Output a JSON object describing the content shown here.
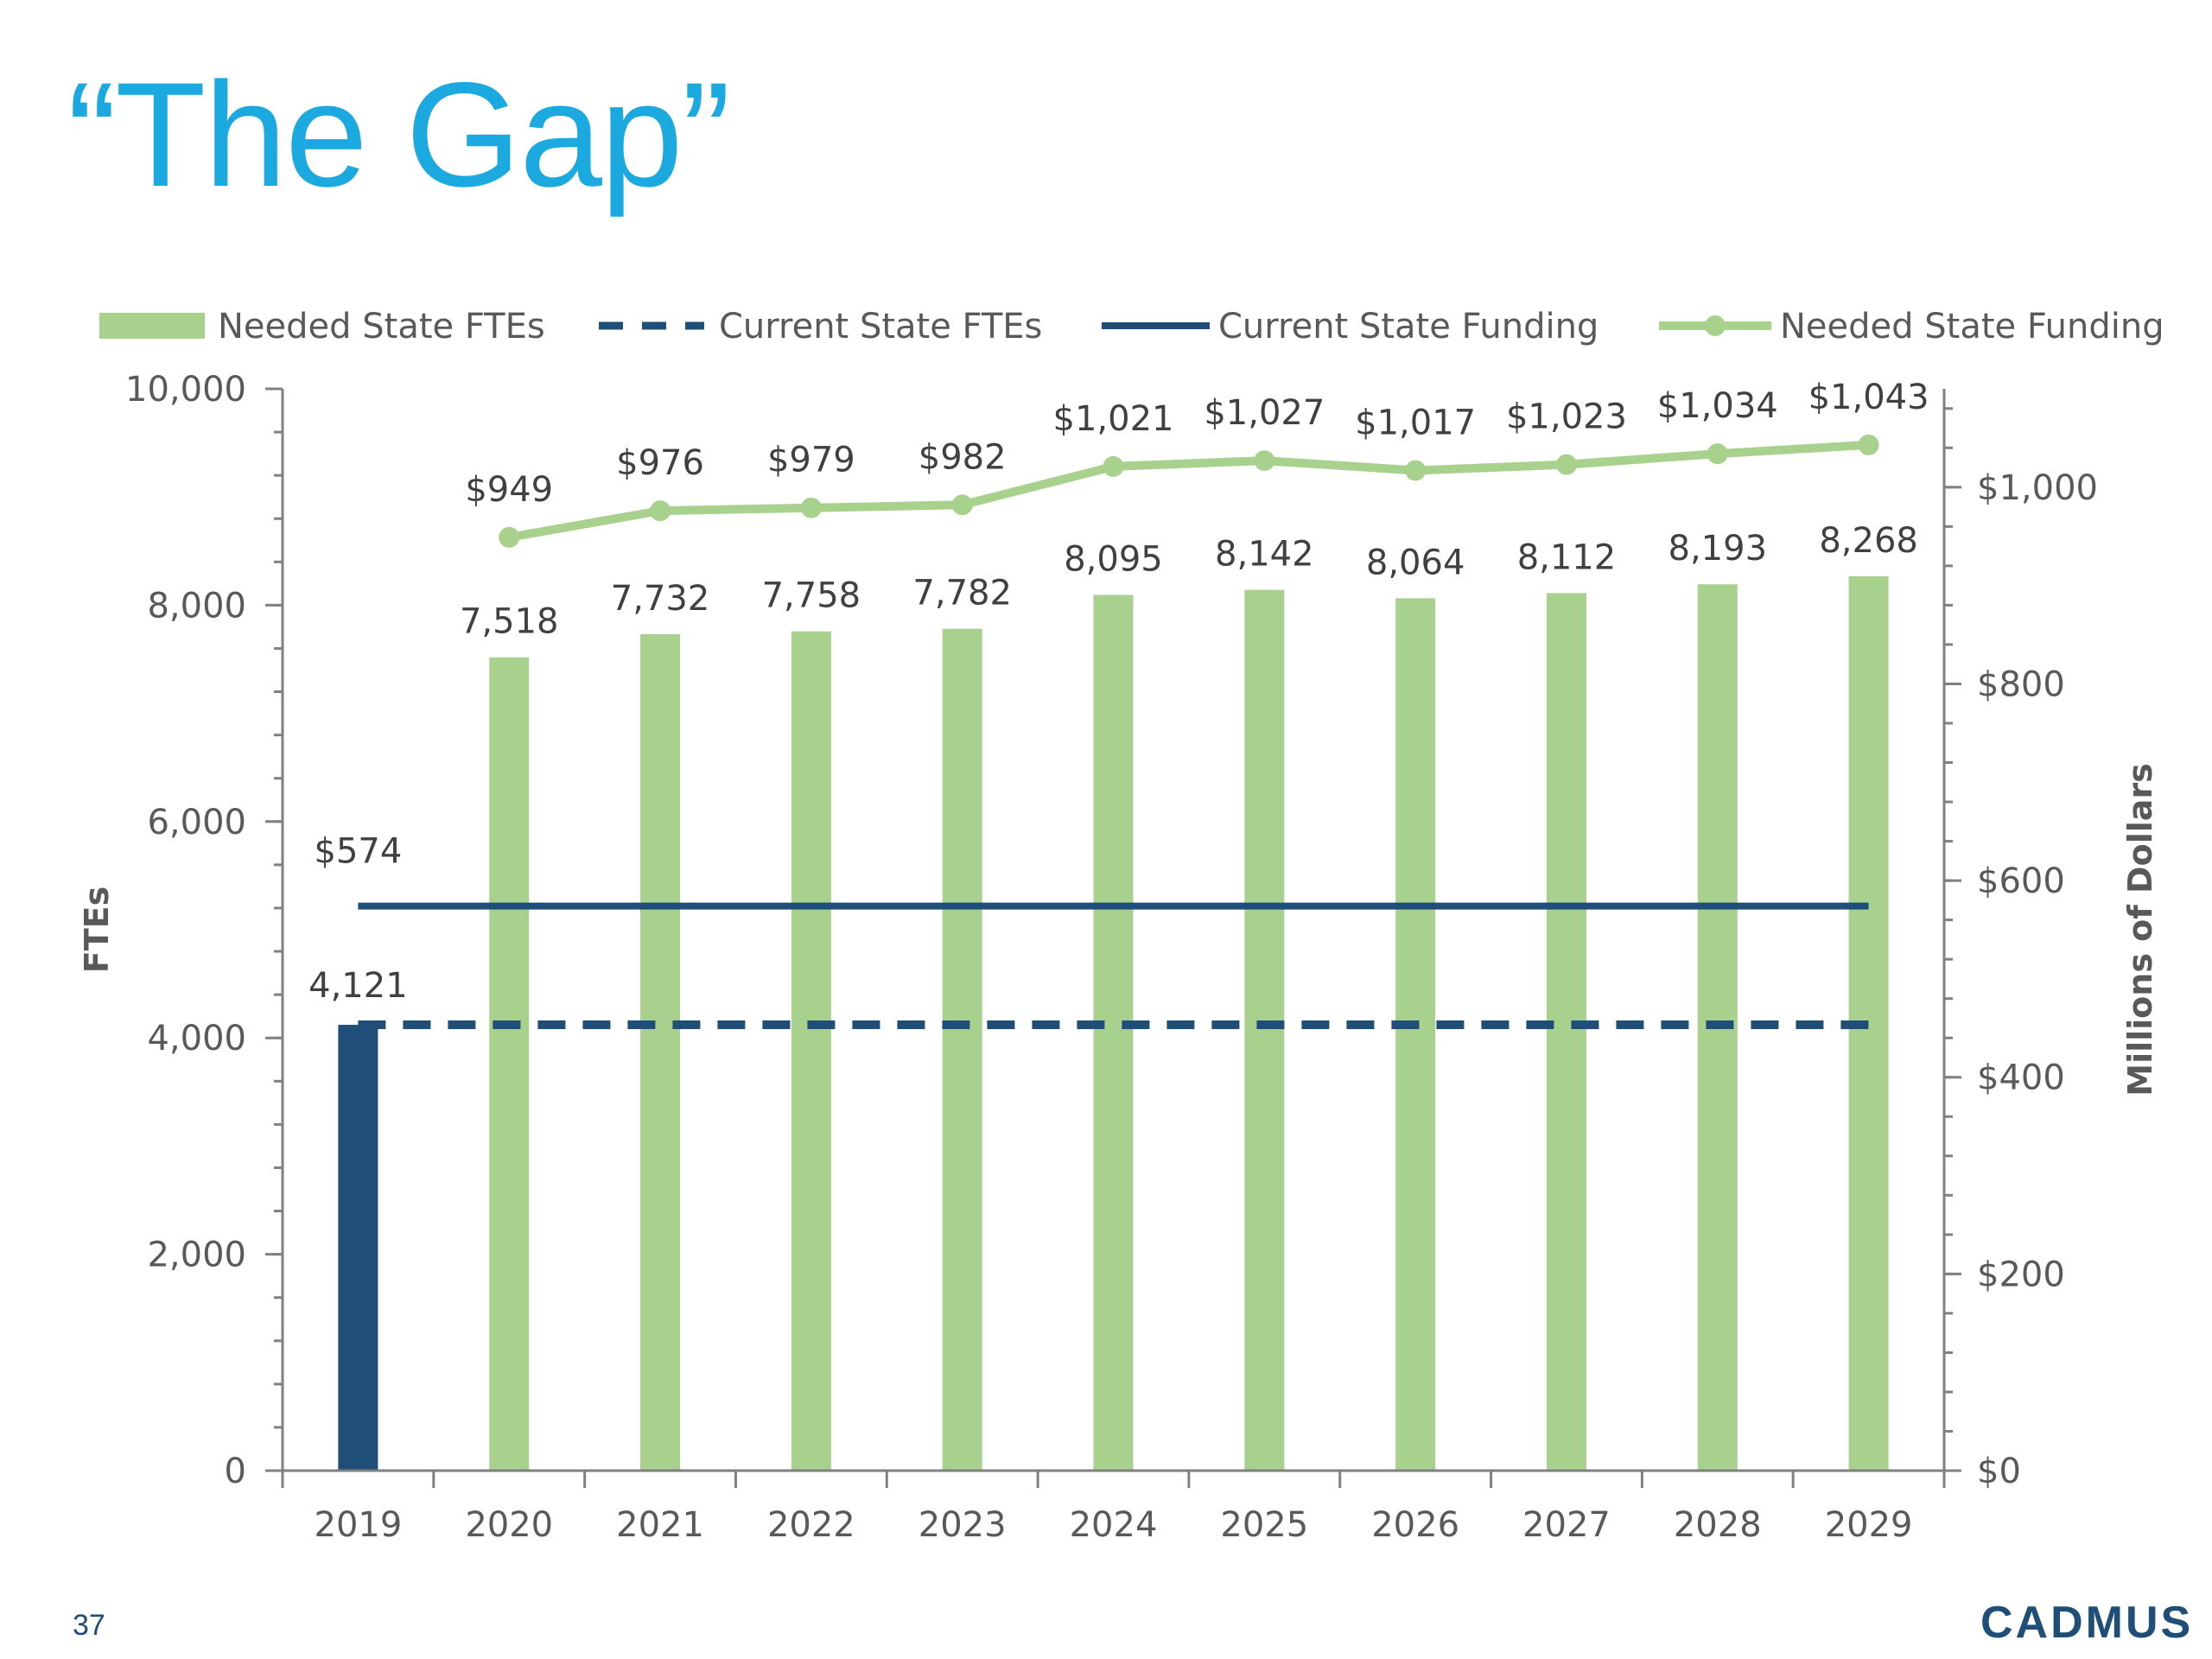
{
  "slide": {
    "title": "“The Gap”",
    "page_number": "37",
    "logo_text": "CADMUS"
  },
  "colors": {
    "title": "#1ba9e0",
    "needed_bars": "#a9d18e",
    "current_bar": "#1f4e79",
    "needed_funding_line": "#a9d18e",
    "current_lines": "#1f4e79",
    "axis_text": "#595959",
    "data_label_text": "#404040"
  },
  "chart_data": {
    "type": "bar",
    "x": [
      "2019",
      "2020",
      "2021",
      "2022",
      "2023",
      "2024",
      "2025",
      "2026",
      "2027",
      "2028",
      "2029"
    ],
    "ylabel": "FTEs",
    "y2label": "Millions of Dollars",
    "ylim": [
      0,
      10000
    ],
    "y2lim": [
      0,
      1100
    ],
    "yticks": [
      0,
      2000,
      4000,
      6000,
      8000,
      10000
    ],
    "ytick_labels": [
      "0",
      "2,000",
      "4,000",
      "6,000",
      "8,000",
      "10,000"
    ],
    "y2ticks": [
      0,
      200,
      400,
      600,
      800,
      1000
    ],
    "y2tick_labels": [
      "$0",
      "$200",
      "$400",
      "$600",
      "$800",
      "$1,000"
    ],
    "legend_position": "top",
    "grid": false,
    "series": [
      {
        "name": "Needed State FTEs",
        "kind": "bar",
        "axis": "left",
        "values": [
          null,
          7518,
          7732,
          7758,
          7782,
          8095,
          8142,
          8064,
          8112,
          8193,
          8268
        ],
        "labels": [
          "",
          "7,518",
          "7,732",
          "7,758",
          "7,782",
          "8,095",
          "8,142",
          "8,064",
          "8,112",
          "8,193",
          "8,268"
        ]
      },
      {
        "name": "",
        "kind": "bar",
        "axis": "left",
        "values": [
          4121,
          null,
          null,
          null,
          null,
          null,
          null,
          null,
          null,
          null,
          null
        ],
        "labels": [
          "4,121",
          "",
          "",
          "",
          "",
          "",
          "",
          "",
          "",
          "",
          ""
        ]
      },
      {
        "name": "Current State FTEs",
        "kind": "dashed-line",
        "axis": "left",
        "values": [
          4121,
          4121,
          4121,
          4121,
          4121,
          4121,
          4121,
          4121,
          4121,
          4121,
          4121
        ]
      },
      {
        "name": "Current State Funding",
        "kind": "line",
        "axis": "right",
        "values": [
          574,
          574,
          574,
          574,
          574,
          574,
          574,
          574,
          574,
          574,
          574
        ],
        "labels": [
          "$574",
          "",
          "",
          "",
          "",
          "",
          "",
          "",
          "",
          "",
          ""
        ]
      },
      {
        "name": "Needed State Funding",
        "kind": "line-markers",
        "axis": "right",
        "values": [
          null,
          949,
          976,
          979,
          982,
          1021,
          1027,
          1017,
          1023,
          1034,
          1043
        ],
        "labels": [
          "",
          "$949",
          "$976",
          "$979",
          "$982",
          "$1,021",
          "$1,027",
          "$1,017",
          "$1,023",
          "$1,034",
          "$1,043"
        ]
      }
    ]
  }
}
